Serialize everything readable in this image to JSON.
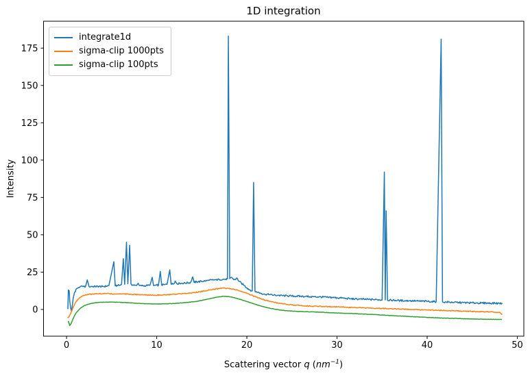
{
  "chart_data": {
    "type": "line",
    "title": "1D integration",
    "ylabel": "Intensity",
    "xlabel": "Scattering vector q (nm−1)",
    "xlabel_parts": {
      "prefix": "Scattering vector ",
      "var": "q",
      "open": " (",
      "unit": "nm",
      "exponent": "−1",
      "close": ")"
    },
    "xlim": [
      -2.55,
      50.72
    ],
    "ylim": [
      -17.9,
      193.0
    ],
    "x_ticks": [
      0,
      10,
      20,
      30,
      40,
      50
    ],
    "y_ticks": [
      0,
      25,
      50,
      75,
      100,
      125,
      150,
      175
    ],
    "grid": false,
    "legend_position": "upper left",
    "frame_color": "#000000",
    "series": [
      {
        "name": "integrate1d",
        "color": "#1f77b4",
        "noise": 0.6,
        "points": [
          [
            0.15,
            0.5
          ],
          [
            0.2,
            13
          ],
          [
            0.3,
            12.5
          ],
          [
            0.35,
            6
          ],
          [
            0.45,
            1
          ],
          [
            0.55,
            -1
          ],
          [
            0.65,
            3
          ],
          [
            0.75,
            8
          ],
          [
            0.9,
            11.5
          ],
          [
            1.05,
            13.5
          ],
          [
            1.25,
            14.5
          ],
          [
            1.5,
            15.2
          ],
          [
            1.8,
            15.3
          ],
          [
            2.1,
            15.2
          ],
          [
            2.3,
            19.8
          ],
          [
            2.5,
            15.3
          ],
          [
            2.8,
            15.4
          ],
          [
            3.2,
            15.3
          ],
          [
            3.6,
            15.4
          ],
          [
            4.0,
            15.4
          ],
          [
            4.4,
            15.5
          ],
          [
            4.7,
            16.0
          ],
          [
            5.25,
            32
          ],
          [
            5.4,
            15.8
          ],
          [
            5.7,
            16.0
          ],
          [
            5.95,
            16.3
          ],
          [
            6.1,
            16.8
          ],
          [
            6.3,
            34
          ],
          [
            6.45,
            16.8
          ],
          [
            6.65,
            45
          ],
          [
            6.8,
            17.2
          ],
          [
            7.0,
            43
          ],
          [
            7.15,
            17.0
          ],
          [
            7.35,
            16.4
          ],
          [
            7.55,
            16.2
          ],
          [
            7.75,
            16.0
          ],
          [
            7.95,
            17.5
          ],
          [
            8.1,
            16.0
          ],
          [
            8.35,
            15.8
          ],
          [
            8.65,
            15.9
          ],
          [
            8.95,
            16.0
          ],
          [
            9.25,
            16.1
          ],
          [
            9.5,
            21.5
          ],
          [
            9.65,
            16.0
          ],
          [
            9.95,
            16.2
          ],
          [
            10.2,
            16.3
          ],
          [
            10.4,
            25.5
          ],
          [
            10.55,
            16.4
          ],
          [
            10.85,
            16.6
          ],
          [
            11.15,
            16.8
          ],
          [
            11.45,
            26.5
          ],
          [
            11.6,
            17.0
          ],
          [
            11.85,
            17.1
          ],
          [
            12.05,
            19.0
          ],
          [
            12.25,
            17.3
          ],
          [
            12.55,
            17.4
          ],
          [
            12.85,
            17.5
          ],
          [
            13.15,
            17.7
          ],
          [
            13.45,
            17.8
          ],
          [
            13.75,
            18.0
          ],
          [
            14.0,
            21.8
          ],
          [
            14.15,
            18.2
          ],
          [
            14.55,
            18.5
          ],
          [
            14.95,
            18.8
          ],
          [
            15.35,
            19.1
          ],
          [
            15.75,
            19.4
          ],
          [
            16.15,
            19.7
          ],
          [
            16.55,
            19.9
          ],
          [
            16.95,
            20.1
          ],
          [
            17.35,
            20.2
          ],
          [
            17.65,
            20.3
          ],
          [
            17.85,
            20.5
          ],
          [
            17.95,
            183
          ],
          [
            18.1,
            20.6
          ],
          [
            18.3,
            21.5
          ],
          [
            18.5,
            20.3
          ],
          [
            18.7,
            20.0
          ],
          [
            18.9,
            21.0
          ],
          [
            19.1,
            19.0
          ],
          [
            19.4,
            17.5
          ],
          [
            19.7,
            16.0
          ],
          [
            20.0,
            14.5
          ],
          [
            20.3,
            13.2
          ],
          [
            20.6,
            12.4
          ],
          [
            20.75,
            85
          ],
          [
            20.9,
            12.0
          ],
          [
            21.2,
            11.4
          ],
          [
            21.6,
            10.8
          ],
          [
            22.0,
            10.3
          ],
          [
            22.5,
            9.9
          ],
          [
            23.0,
            9.6
          ],
          [
            23.5,
            9.4
          ],
          [
            24.0,
            9.2
          ],
          [
            24.5,
            9.1
          ],
          [
            25.0,
            9.0
          ],
          [
            25.5,
            8.9
          ],
          [
            26.0,
            8.8
          ],
          [
            26.5,
            8.7
          ],
          [
            27.0,
            8.6
          ],
          [
            27.5,
            8.5
          ],
          [
            28.0,
            8.4
          ],
          [
            28.5,
            8.3
          ],
          [
            29.0,
            8.1
          ],
          [
            29.5,
            8.0
          ],
          [
            30.0,
            7.8
          ],
          [
            30.5,
            7.6
          ],
          [
            31.0,
            7.4
          ],
          [
            31.5,
            7.2
          ],
          [
            32.0,
            7.0
          ],
          [
            32.5,
            6.9
          ],
          [
            33.0,
            6.8
          ],
          [
            33.5,
            6.7
          ],
          [
            34.0,
            6.6
          ],
          [
            34.5,
            6.5
          ],
          [
            35.0,
            6.4
          ],
          [
            35.25,
            92
          ],
          [
            35.35,
            6.4
          ],
          [
            35.45,
            66
          ],
          [
            35.6,
            6.3
          ],
          [
            36.0,
            6.2
          ],
          [
            36.5,
            6.1
          ],
          [
            37.0,
            6.0
          ],
          [
            37.5,
            5.9
          ],
          [
            38.0,
            5.8
          ],
          [
            38.5,
            5.7
          ],
          [
            39.0,
            5.6
          ],
          [
            39.5,
            5.5
          ],
          [
            40.0,
            5.4
          ],
          [
            40.5,
            5.3
          ],
          [
            41.0,
            5.2
          ],
          [
            41.55,
            181
          ],
          [
            41.7,
            5.1
          ],
          [
            42.0,
            5.0
          ],
          [
            42.5,
            4.9
          ],
          [
            43.0,
            4.8
          ],
          [
            43.5,
            4.7
          ],
          [
            44.0,
            4.6
          ],
          [
            44.5,
            4.5
          ],
          [
            45.0,
            4.4
          ],
          [
            45.5,
            4.35
          ],
          [
            46.0,
            4.3
          ],
          [
            46.5,
            4.25
          ],
          [
            47.0,
            4.2
          ],
          [
            47.5,
            4.15
          ],
          [
            48.0,
            4.1
          ],
          [
            48.3,
            4.1
          ]
        ]
      },
      {
        "name": "sigma-clip 1000pts",
        "color": "#ff7f0e",
        "noise": 0.3,
        "points": [
          [
            0.15,
            -5.5
          ],
          [
            0.3,
            -4.5
          ],
          [
            0.5,
            -2.0
          ],
          [
            0.7,
            1.0
          ],
          [
            0.9,
            3.5
          ],
          [
            1.1,
            5.5
          ],
          [
            1.4,
            7.5
          ],
          [
            1.7,
            8.8
          ],
          [
            2.0,
            9.5
          ],
          [
            2.4,
            10.0
          ],
          [
            2.8,
            10.3
          ],
          [
            3.2,
            10.5
          ],
          [
            3.8,
            10.6
          ],
          [
            4.4,
            10.6
          ],
          [
            5.0,
            10.5
          ],
          [
            5.6,
            10.4
          ],
          [
            6.2,
            10.5
          ],
          [
            6.8,
            10.3
          ],
          [
            7.4,
            10.1
          ],
          [
            8.0,
            9.9
          ],
          [
            8.6,
            9.7
          ],
          [
            9.2,
            9.6
          ],
          [
            9.8,
            9.6
          ],
          [
            10.4,
            9.7
          ],
          [
            11.0,
            9.8
          ],
          [
            11.6,
            10.0
          ],
          [
            12.2,
            10.2
          ],
          [
            12.8,
            10.5
          ],
          [
            13.4,
            10.8
          ],
          [
            14.0,
            11.2
          ],
          [
            14.6,
            11.7
          ],
          [
            15.2,
            12.3
          ],
          [
            15.8,
            13.0
          ],
          [
            16.4,
            13.6
          ],
          [
            17.0,
            14.1
          ],
          [
            17.4,
            14.3
          ],
          [
            17.8,
            14.2
          ],
          [
            18.2,
            13.9
          ],
          [
            18.6,
            13.4
          ],
          [
            19.0,
            12.8
          ],
          [
            19.5,
            11.9
          ],
          [
            20.0,
            10.8
          ],
          [
            20.5,
            9.6
          ],
          [
            21.0,
            8.4
          ],
          [
            21.5,
            7.3
          ],
          [
            22.0,
            6.3
          ],
          [
            22.5,
            5.5
          ],
          [
            23.0,
            4.8
          ],
          [
            23.5,
            4.2
          ],
          [
            24.0,
            3.7
          ],
          [
            24.5,
            3.3
          ],
          [
            25.0,
            3.0
          ],
          [
            25.5,
            2.8
          ],
          [
            26.0,
            2.6
          ],
          [
            26.5,
            2.4
          ],
          [
            27.0,
            2.3
          ],
          [
            27.5,
            2.2
          ],
          [
            28.0,
            2.1
          ],
          [
            28.5,
            2.0
          ],
          [
            29.0,
            1.9
          ],
          [
            29.5,
            1.8
          ],
          [
            30.0,
            1.7
          ],
          [
            31.0,
            1.5
          ],
          [
            32.0,
            1.3
          ],
          [
            33.0,
            1.1
          ],
          [
            34.0,
            0.9
          ],
          [
            35.0,
            0.7
          ],
          [
            36.0,
            0.5
          ],
          [
            37.0,
            0.3
          ],
          [
            38.0,
            0.1
          ],
          [
            39.0,
            -0.1
          ],
          [
            40.0,
            -0.3
          ],
          [
            41.0,
            -0.5
          ],
          [
            42.0,
            -0.7
          ],
          [
            43.0,
            -0.9
          ],
          [
            44.0,
            -1.1
          ],
          [
            45.0,
            -1.3
          ],
          [
            46.0,
            -1.5
          ],
          [
            47.0,
            -1.7
          ],
          [
            47.7,
            -1.9
          ],
          [
            48.1,
            -2.2
          ],
          [
            48.3,
            -3.3
          ]
        ]
      },
      {
        "name": "sigma-clip 100pts",
        "color": "#2ca02c",
        "noise": 0.12,
        "points": [
          [
            0.2,
            -8.0
          ],
          [
            0.35,
            -10.8
          ],
          [
            0.5,
            -9.5
          ],
          [
            0.7,
            -6.5
          ],
          [
            0.9,
            -4.0
          ],
          [
            1.1,
            -2.0
          ],
          [
            1.4,
            0.0
          ],
          [
            1.7,
            1.5
          ],
          [
            2.0,
            2.6
          ],
          [
            2.4,
            3.5
          ],
          [
            2.8,
            4.1
          ],
          [
            3.2,
            4.5
          ],
          [
            3.8,
            4.8
          ],
          [
            4.4,
            4.9
          ],
          [
            5.0,
            4.9
          ],
          [
            5.6,
            4.8
          ],
          [
            6.2,
            4.7
          ],
          [
            6.8,
            4.5
          ],
          [
            7.4,
            4.3
          ],
          [
            8.0,
            4.1
          ],
          [
            8.6,
            3.9
          ],
          [
            9.2,
            3.8
          ],
          [
            9.8,
            3.7
          ],
          [
            10.4,
            3.7
          ],
          [
            11.0,
            3.8
          ],
          [
            11.6,
            3.9
          ],
          [
            12.2,
            4.1
          ],
          [
            12.8,
            4.4
          ],
          [
            13.4,
            4.7
          ],
          [
            14.0,
            5.1
          ],
          [
            14.6,
            5.6
          ],
          [
            15.2,
            6.3
          ],
          [
            15.8,
            7.1
          ],
          [
            16.4,
            7.9
          ],
          [
            17.0,
            8.5
          ],
          [
            17.4,
            8.8
          ],
          [
            17.8,
            8.7
          ],
          [
            18.2,
            8.4
          ],
          [
            18.6,
            7.9
          ],
          [
            19.0,
            7.2
          ],
          [
            19.5,
            6.3
          ],
          [
            20.0,
            5.3
          ],
          [
            20.5,
            4.3
          ],
          [
            21.0,
            3.3
          ],
          [
            21.5,
            2.4
          ],
          [
            22.0,
            1.6
          ],
          [
            22.5,
            0.9
          ],
          [
            23.0,
            0.3
          ],
          [
            23.5,
            -0.2
          ],
          [
            24.0,
            -0.6
          ],
          [
            24.5,
            -0.9
          ],
          [
            25.0,
            -1.1
          ],
          [
            25.5,
            -1.3
          ],
          [
            26.0,
            -1.4
          ],
          [
            26.5,
            -1.5
          ],
          [
            27.0,
            -1.6
          ],
          [
            28.0,
            -1.8
          ],
          [
            29.0,
            -2.1
          ],
          [
            30.0,
            -2.4
          ],
          [
            31.0,
            -2.6
          ],
          [
            32.0,
            -2.8
          ],
          [
            33.0,
            -3.1
          ],
          [
            34.0,
            -3.4
          ],
          [
            35.0,
            -3.7
          ],
          [
            36.0,
            -4.1
          ],
          [
            37.0,
            -4.4
          ],
          [
            38.0,
            -4.7
          ],
          [
            39.0,
            -5.0
          ],
          [
            40.0,
            -5.3
          ],
          [
            41.0,
            -5.6
          ],
          [
            42.0,
            -5.8
          ],
          [
            43.0,
            -6.0
          ],
          [
            44.0,
            -6.2
          ],
          [
            45.0,
            -6.4
          ],
          [
            46.0,
            -6.5
          ],
          [
            47.0,
            -6.6
          ],
          [
            48.0,
            -6.7
          ],
          [
            48.25,
            -6.7
          ]
        ]
      }
    ]
  }
}
